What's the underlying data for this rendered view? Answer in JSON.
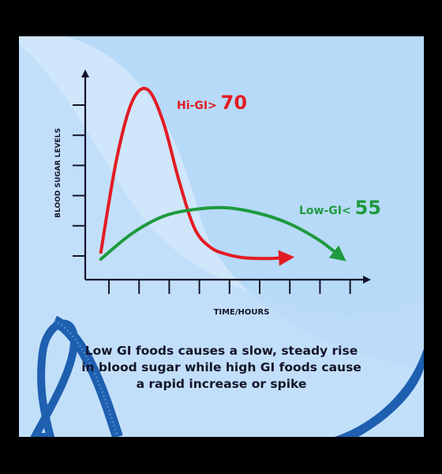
{
  "chart_data": {
    "type": "line",
    "title": "",
    "xlabel": "TIME/HOURS",
    "ylabel": "BLOOD SUGAR LEVELS",
    "grid": false,
    "legend": "inline",
    "xlim": [
      0,
      9
    ],
    "ylim": [
      0,
      6
    ],
    "series": [
      {
        "name": "Hi-GI> 70",
        "label_prefix": "Hi-GI>",
        "label_value": "70",
        "color": "#e31b23",
        "x": [
          0.5,
          1.0,
          1.5,
          2.0,
          2.5,
          3.0,
          3.5,
          4.0,
          4.5,
          5.0,
          5.5,
          6.0,
          6.5
        ],
        "y": [
          0.8,
          3.5,
          5.2,
          5.55,
          4.6,
          2.9,
          1.5,
          0.95,
          0.75,
          0.65,
          0.62,
          0.62,
          0.65
        ]
      },
      {
        "name": "Low-GI< 55",
        "label_prefix": "Low-GI<",
        "label_value": "55",
        "color": "#1f9a3e",
        "x": [
          0.5,
          1.5,
          2.5,
          3.5,
          4.5,
          5.5,
          6.5,
          7.5,
          8.2
        ],
        "y": [
          0.6,
          1.35,
          1.85,
          2.05,
          2.1,
          1.95,
          1.65,
          1.15,
          0.65
        ]
      }
    ]
  },
  "caption": [
    "Low GI foods causes a slow, steady rise",
    "in blood sugar while high GI foods cause",
    "a rapid increase or spike"
  ],
  "colors": {
    "background": "#cfe6fb",
    "axis": "#14142a",
    "ribbon": "#1e5fb0"
  }
}
